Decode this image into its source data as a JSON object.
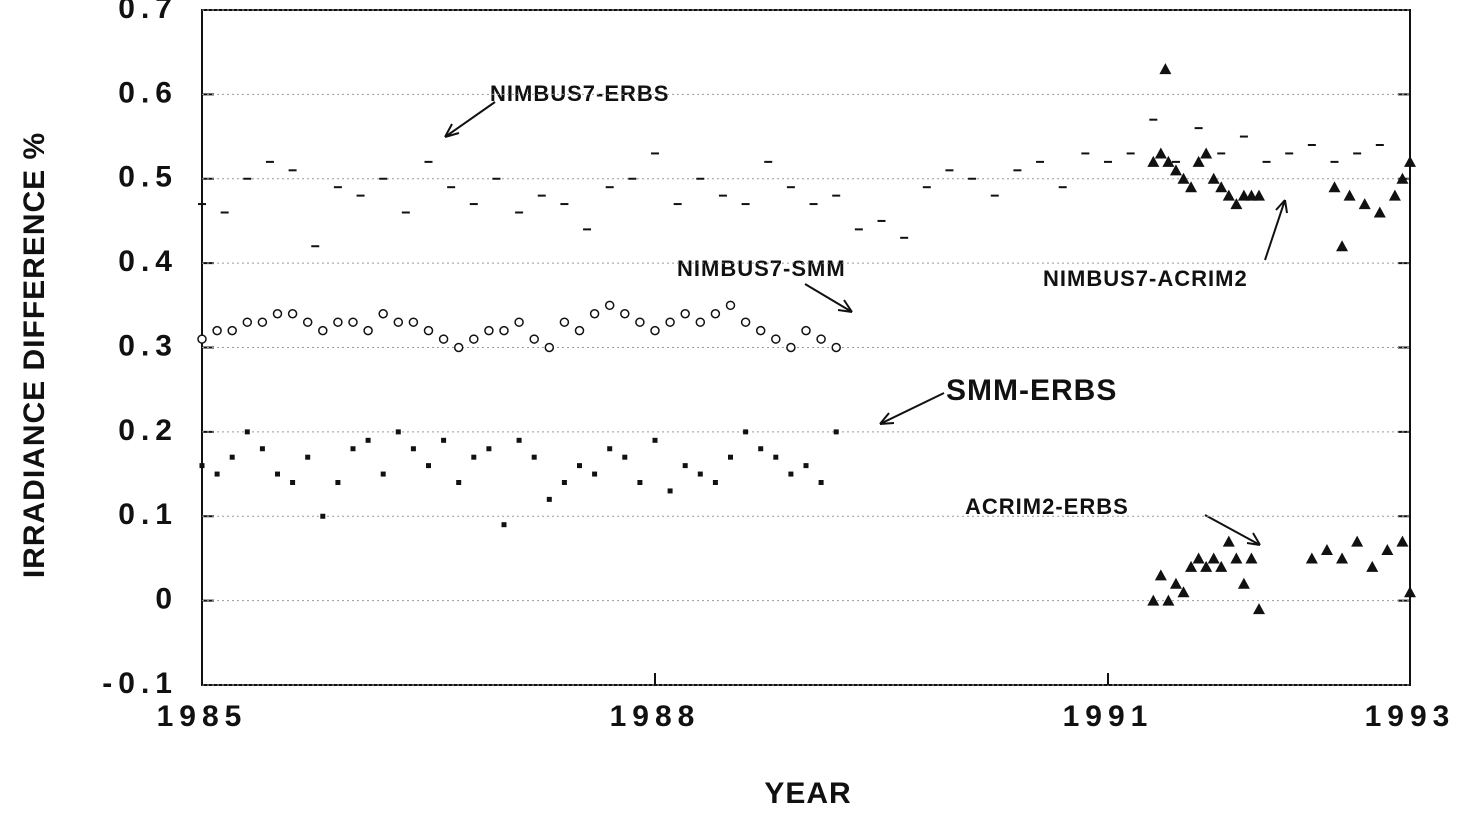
{
  "chart_data": {
    "type": "scatter",
    "xlabel": "YEAR",
    "ylabel": "IRRADIANCE DIFFERENCE %",
    "xlim": [
      1985,
      1993
    ],
    "xticks": [
      1985,
      1988,
      1991,
      1993
    ],
    "ylim": [
      -0.1,
      0.7
    ],
    "yticks": [
      -0.1,
      0,
      0.1,
      0.2,
      0.3,
      0.4,
      0.5,
      0.6,
      0.7
    ],
    "grid": true,
    "series": [
      {
        "name": "NIMBUS7-ERBS",
        "color": "#111111",
        "marker": "dash",
        "x": [
          1985.0,
          1985.15,
          1985.3,
          1985.45,
          1985.6,
          1985.75,
          1985.9,
          1986.05,
          1986.2,
          1986.35,
          1986.5,
          1986.65,
          1986.8,
          1986.95,
          1987.1,
          1987.25,
          1987.4,
          1987.55,
          1987.7,
          1987.85,
          1988.0,
          1988.15,
          1988.3,
          1988.45,
          1988.6,
          1988.75,
          1988.9,
          1989.05,
          1989.2,
          1989.35,
          1989.5,
          1989.65,
          1989.8,
          1989.95,
          1990.1,
          1990.25,
          1990.4,
          1990.55,
          1990.7,
          1990.85,
          1991.0,
          1991.15,
          1991.3,
          1991.45,
          1991.6,
          1991.75,
          1991.9,
          1992.05,
          1992.2,
          1992.35,
          1992.5,
          1992.65,
          1992.8
        ],
        "values": [
          0.47,
          0.46,
          0.5,
          0.52,
          0.51,
          0.42,
          0.49,
          0.48,
          0.5,
          0.46,
          0.52,
          0.49,
          0.47,
          0.5,
          0.46,
          0.48,
          0.47,
          0.44,
          0.49,
          0.5,
          0.53,
          0.47,
          0.5,
          0.48,
          0.47,
          0.52,
          0.49,
          0.47,
          0.48,
          0.44,
          0.45,
          0.43,
          0.49,
          0.51,
          0.5,
          0.48,
          0.51,
          0.52,
          0.49,
          0.53,
          0.52,
          0.53,
          0.57,
          0.52,
          0.56,
          0.53,
          0.55,
          0.52,
          0.53,
          0.54,
          0.52,
          0.53,
          0.54
        ]
      },
      {
        "name": "NIMBUS7-SMM",
        "color": "#111111",
        "marker": "circle",
        "x": [
          1985.0,
          1985.1,
          1985.2,
          1985.3,
          1985.4,
          1985.5,
          1985.6,
          1985.7,
          1985.8,
          1985.9,
          1986.0,
          1986.1,
          1986.2,
          1986.3,
          1986.4,
          1986.5,
          1986.6,
          1986.7,
          1986.8,
          1986.9,
          1987.0,
          1987.1,
          1987.2,
          1987.3,
          1987.4,
          1987.5,
          1987.6,
          1987.7,
          1987.8,
          1987.9,
          1988.0,
          1988.1,
          1988.2,
          1988.3,
          1988.4,
          1988.5,
          1988.6,
          1988.7,
          1988.8,
          1988.9,
          1989.0,
          1989.1,
          1989.2
        ],
        "values": [
          0.31,
          0.32,
          0.32,
          0.33,
          0.33,
          0.34,
          0.34,
          0.33,
          0.32,
          0.33,
          0.33,
          0.32,
          0.34,
          0.33,
          0.33,
          0.32,
          0.31,
          0.3,
          0.31,
          0.32,
          0.32,
          0.33,
          0.31,
          0.3,
          0.33,
          0.32,
          0.34,
          0.35,
          0.34,
          0.33,
          0.32,
          0.33,
          0.34,
          0.33,
          0.34,
          0.35,
          0.33,
          0.32,
          0.31,
          0.3,
          0.32,
          0.31,
          0.3
        ]
      },
      {
        "name": "SMM-ERBS",
        "color": "#111111",
        "marker": "square",
        "x": [
          1985.0,
          1985.1,
          1985.2,
          1985.3,
          1985.4,
          1985.5,
          1985.6,
          1985.7,
          1985.8,
          1985.9,
          1986.0,
          1986.1,
          1986.2,
          1986.3,
          1986.4,
          1986.5,
          1986.6,
          1986.7,
          1986.8,
          1986.9,
          1987.0,
          1987.1,
          1987.2,
          1987.3,
          1987.4,
          1987.5,
          1987.6,
          1987.7,
          1987.8,
          1987.9,
          1988.0,
          1988.1,
          1988.2,
          1988.3,
          1988.4,
          1988.5,
          1988.6,
          1988.7,
          1988.8,
          1988.9,
          1989.0,
          1989.1,
          1989.2
        ],
        "values": [
          0.16,
          0.15,
          0.17,
          0.2,
          0.18,
          0.15,
          0.14,
          0.17,
          0.1,
          0.14,
          0.18,
          0.19,
          0.15,
          0.2,
          0.18,
          0.16,
          0.19,
          0.14,
          0.17,
          0.18,
          0.09,
          0.19,
          0.17,
          0.12,
          0.14,
          0.16,
          0.15,
          0.18,
          0.17,
          0.14,
          0.19,
          0.13,
          0.16,
          0.15,
          0.14,
          0.17,
          0.2,
          0.18,
          0.17,
          0.15,
          0.16,
          0.14,
          0.2
        ]
      },
      {
        "name": "NIMBUS7-ACRIM2",
        "color": "#111111",
        "marker": "triangle",
        "x": [
          1991.3,
          1991.35,
          1991.38,
          1991.4,
          1991.45,
          1991.5,
          1991.55,
          1991.6,
          1991.65,
          1991.7,
          1991.75,
          1991.8,
          1991.85,
          1991.9,
          1991.95,
          1992.0,
          1992.5,
          1992.55,
          1992.6,
          1992.7,
          1992.8,
          1992.9,
          1992.95,
          1993.0
        ],
        "values": [
          0.52,
          0.53,
          0.63,
          0.52,
          0.51,
          0.5,
          0.49,
          0.52,
          0.53,
          0.5,
          0.49,
          0.48,
          0.47,
          0.48,
          0.48,
          0.48,
          0.49,
          0.42,
          0.48,
          0.47,
          0.46,
          0.48,
          0.5,
          0.52
        ]
      },
      {
        "name": "ACRIM2-ERBS",
        "color": "#111111",
        "marker": "triangle",
        "x": [
          1991.3,
          1991.35,
          1991.4,
          1991.45,
          1991.5,
          1991.55,
          1991.6,
          1991.65,
          1991.7,
          1991.75,
          1991.8,
          1991.85,
          1991.9,
          1991.95,
          1992.0,
          1992.35,
          1992.45,
          1992.55,
          1992.65,
          1992.75,
          1992.85,
          1992.95,
          1993.0
        ],
        "values": [
          0.0,
          0.03,
          0.0,
          0.02,
          0.01,
          0.04,
          0.05,
          0.04,
          0.05,
          0.04,
          0.07,
          0.05,
          0.02,
          0.05,
          -0.01,
          0.05,
          0.06,
          0.05,
          0.07,
          0.04,
          0.06,
          0.07,
          0.01
        ]
      }
    ]
  }
}
